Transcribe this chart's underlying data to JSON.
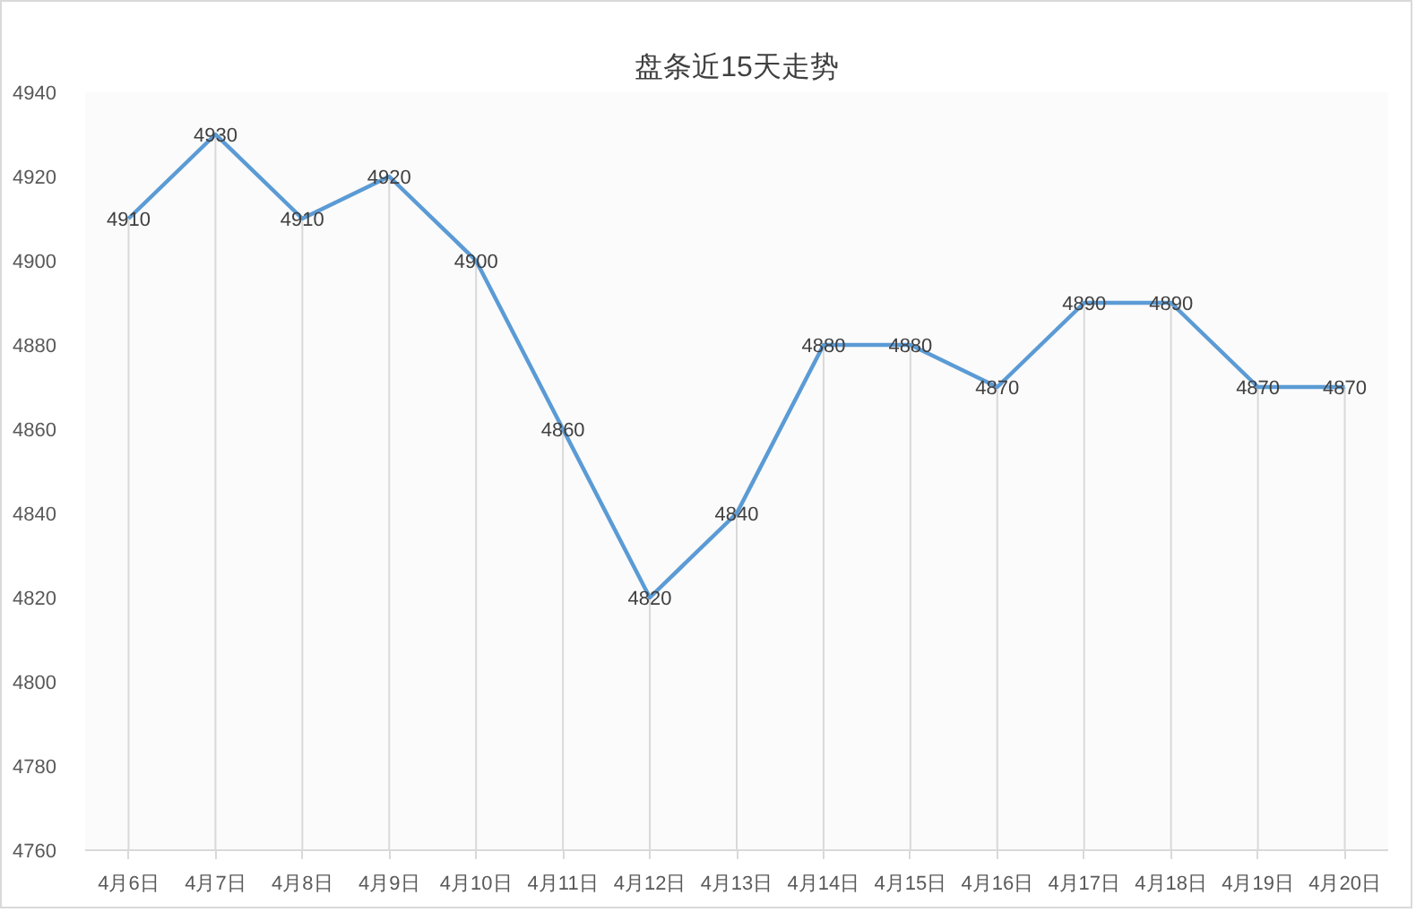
{
  "chart_data": {
    "type": "line",
    "title": "盘条近15天走势",
    "categories": [
      "4月6日",
      "4月7日",
      "4月8日",
      "4月9日",
      "4月10日",
      "4月11日",
      "4月12日",
      "4月13日",
      "4月14日",
      "4月15日",
      "4月16日",
      "4月17日",
      "4月18日",
      "4月19日",
      "4月20日"
    ],
    "series": [
      {
        "color": "#5b9bd5",
        "values": [
          4910,
          4930,
          4910,
          4920,
          4900,
          4860,
          4820,
          4840,
          4880,
          4880,
          4870,
          4890,
          4890,
          4870,
          4870
        ]
      }
    ],
    "ylim": [
      4760,
      4940
    ],
    "yticks": [
      4760,
      4780,
      4800,
      4820,
      4840,
      4860,
      4880,
      4900,
      4920,
      4940
    ],
    "grid": "x",
    "data_labels": true,
    "line_style": "solid"
  }
}
